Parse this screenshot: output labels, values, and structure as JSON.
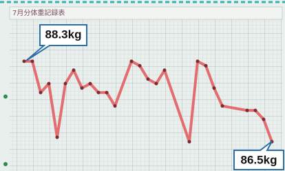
{
  "chart_data": {
    "type": "line",
    "title": "7月分体重記録表",
    "x": [
      1,
      2,
      3,
      4,
      5,
      6,
      7,
      8,
      9,
      10,
      11,
      12,
      14,
      15,
      16,
      17,
      18,
      21,
      22,
      23,
      24,
      25,
      28,
      29,
      30,
      31
    ],
    "series": [
      {
        "color": "#e0575b",
        "values": [
          88.3,
          88.3,
          87.6,
          87.8,
          86.6,
          87.8,
          88.1,
          87.7,
          87.8,
          87.6,
          87.6,
          87.3,
          88.3,
          88.2,
          87.9,
          87.8,
          88.1,
          86.5,
          88.3,
          88.2,
          87.7,
          87.3,
          87.2,
          87.2,
          87.0,
          86.5
        ]
      }
    ],
    "xlim": [
      -0.5,
      32.5
    ],
    "ylim": [
      86.0,
      89.5
    ],
    "annotations": [
      "88.3kg",
      "86.5kg"
    ]
  }
}
